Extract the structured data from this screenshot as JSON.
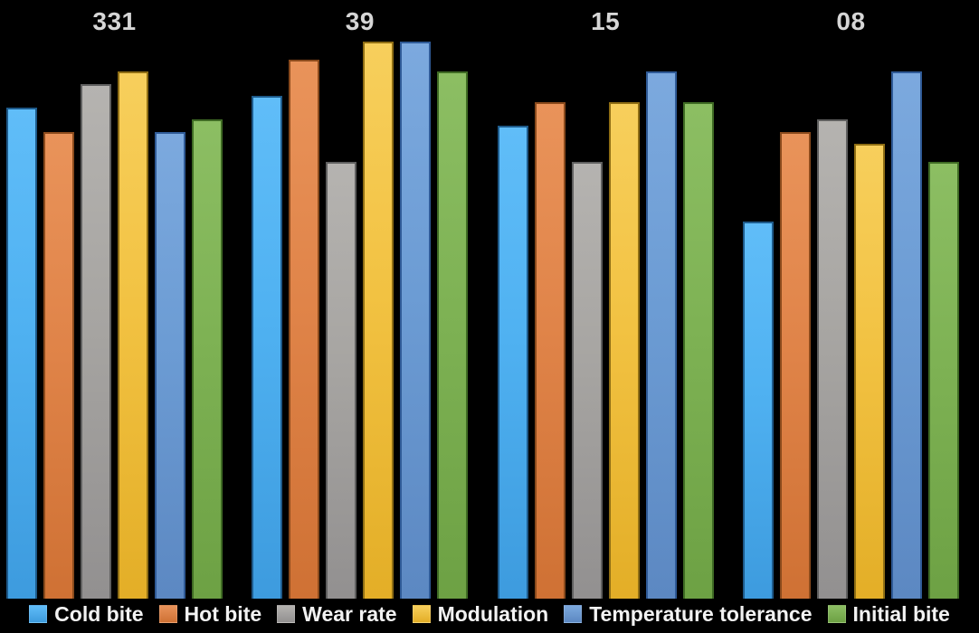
{
  "chart_data": {
    "type": "bar",
    "title": "",
    "background": "#000000",
    "grid": false,
    "legend_position": "bottom",
    "label_color": "#d6d6d6",
    "legend_text_color": "#f2f2f2",
    "ylim": [
      0,
      10
    ],
    "categories": [
      "331",
      "39",
      "15",
      "08"
    ],
    "series": [
      {
        "name": "Cold bite",
        "color": "#4FB1F1",
        "color_light": "#60BDF8",
        "color_dark": "#3D9BDE",
        "color_border": "#1E5A8A",
        "values": [
          8.2,
          8.4,
          7.9,
          6.3
        ]
      },
      {
        "name": "Hot bite",
        "color": "#E08449",
        "color_light": "#E9935A",
        "color_dark": "#CF7134",
        "color_border": "#8A4A1C",
        "values": [
          7.8,
          9.0,
          8.3,
          7.8
        ]
      },
      {
        "name": "Wear rate",
        "color": "#A7A5A2",
        "color_light": "#B5B3B0",
        "color_dark": "#929090",
        "color_border": "#5F5F5F",
        "values": [
          8.6,
          7.3,
          7.3,
          8.0
        ]
      },
      {
        "name": "Modulation",
        "color": "#F2C242",
        "color_light": "#F7CF5C",
        "color_dark": "#E3AE27",
        "color_border": "#8F6E14",
        "values": [
          8.8,
          9.3,
          8.3,
          7.6
        ]
      },
      {
        "name": "Temperature tolerance",
        "color": "#6C9CD4",
        "color_light": "#7CA9DE",
        "color_dark": "#5C88C2",
        "color_border": "#2F5A96",
        "values": [
          7.8,
          9.3,
          8.8,
          8.8
        ]
      },
      {
        "name": "Initial bite",
        "color": "#7EB254",
        "color_light": "#8CBE63",
        "color_dark": "#6DA144",
        "color_border": "#3F6B24",
        "values": [
          8.0,
          8.8,
          8.3,
          7.3
        ]
      }
    ]
  }
}
